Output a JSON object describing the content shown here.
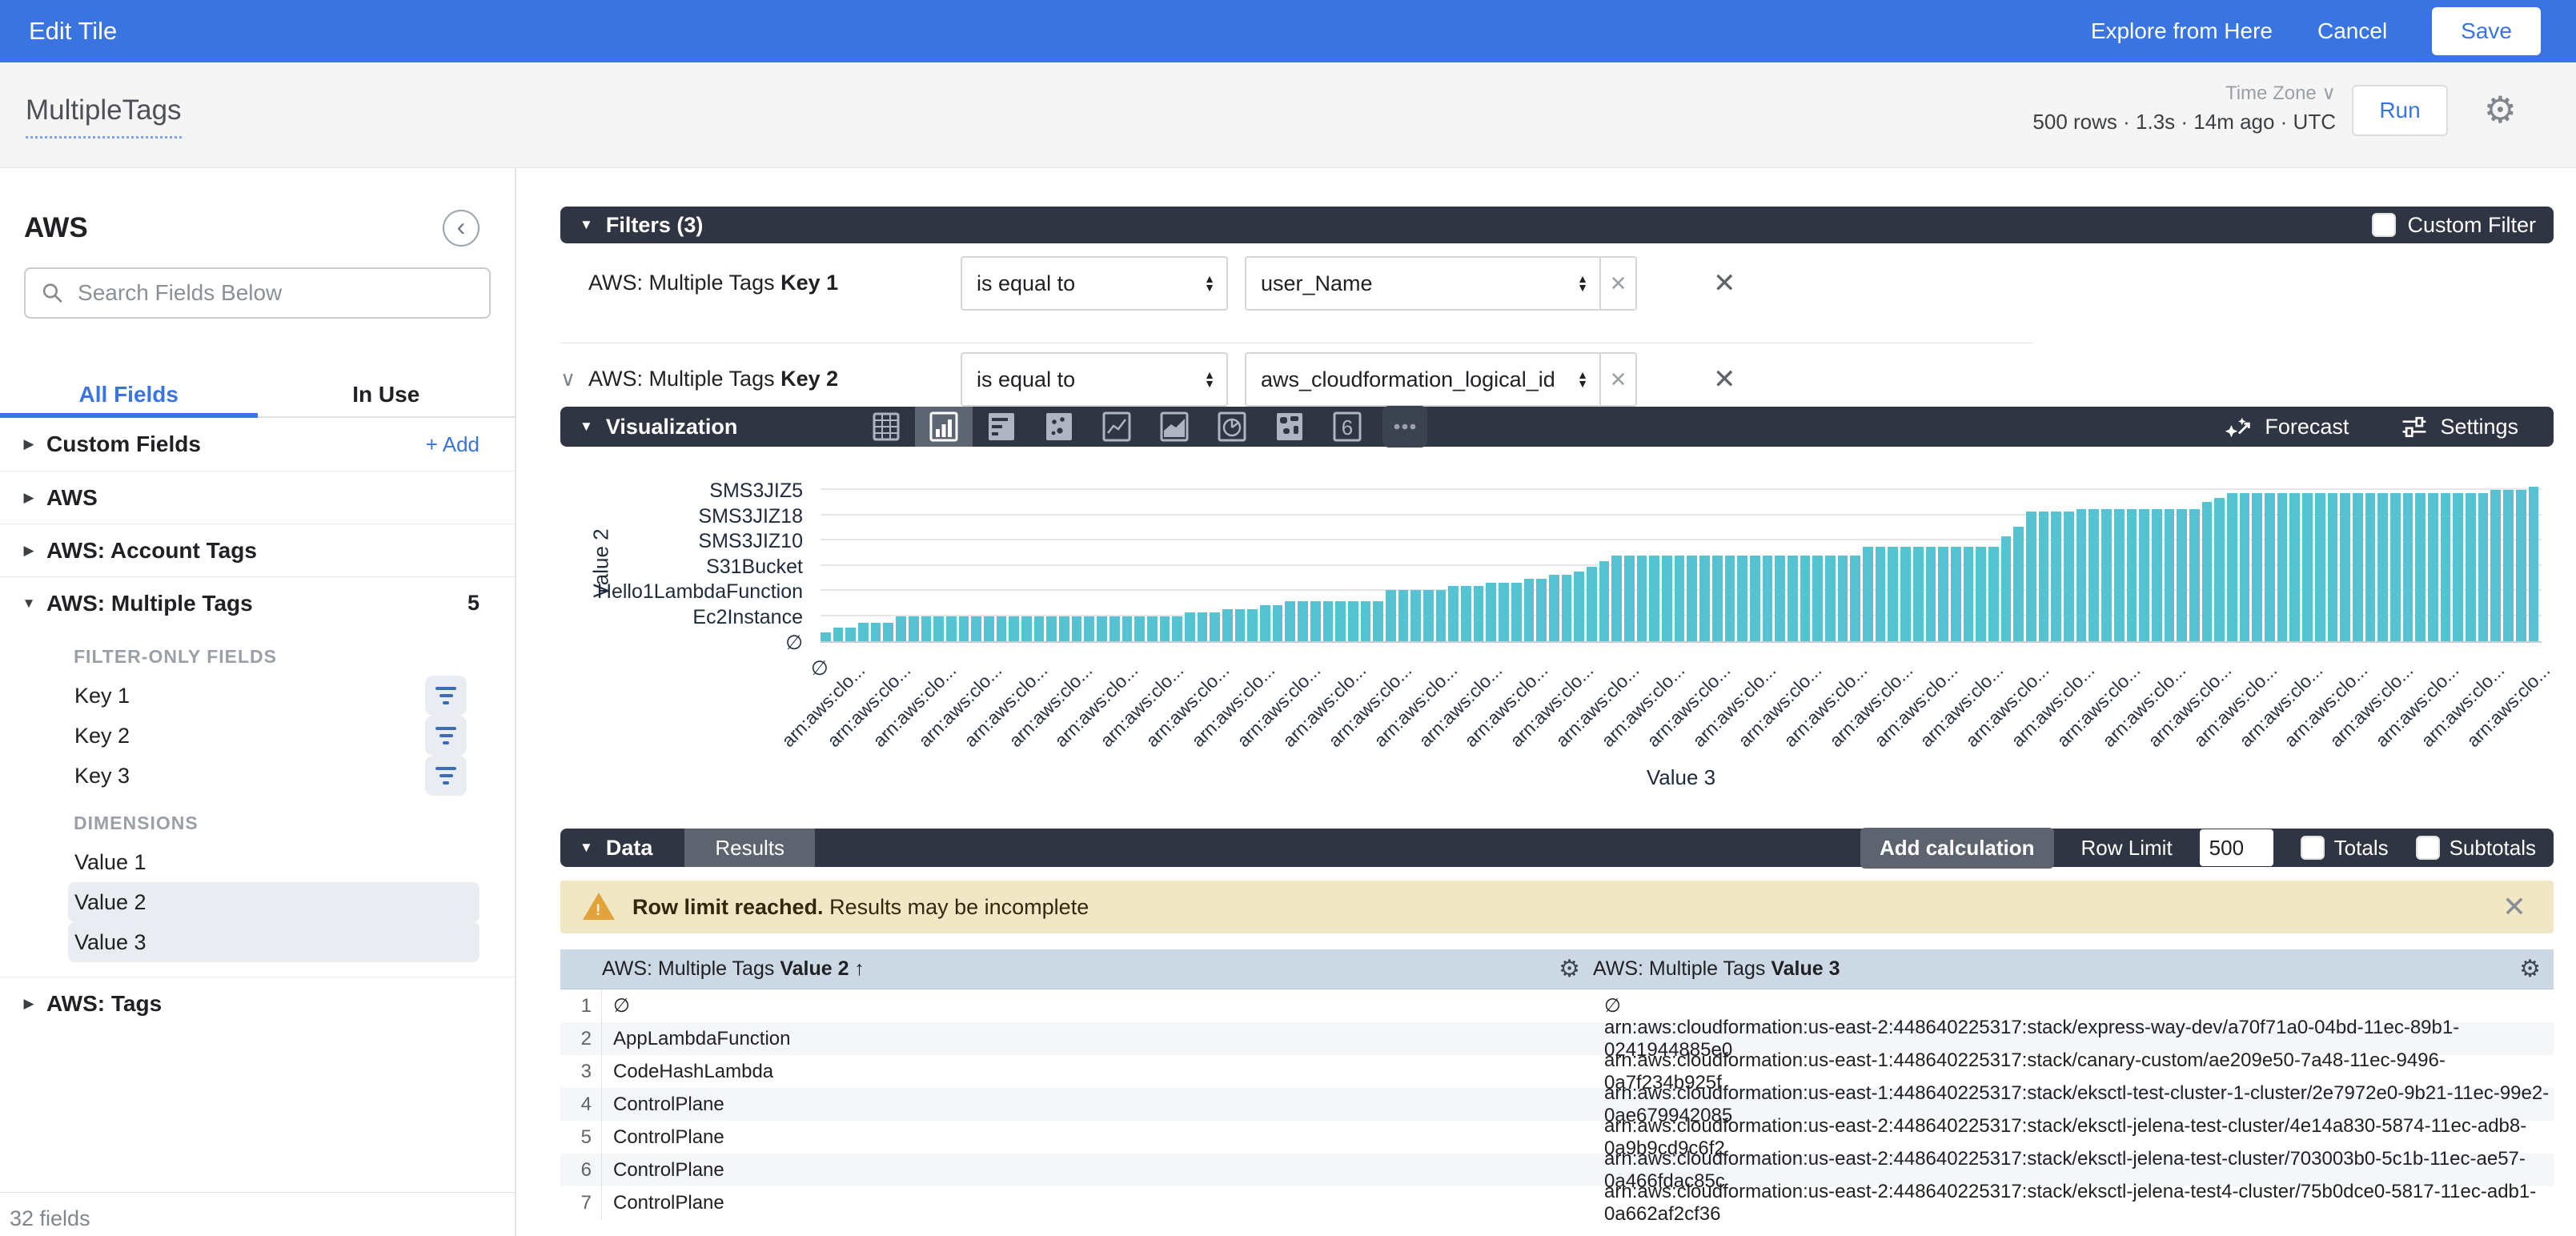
{
  "topbar": {
    "title": "Edit Tile",
    "explore": "Explore from Here",
    "cancel": "Cancel",
    "save": "Save"
  },
  "queryHeader": {
    "title": "MultipleTags",
    "status": "500 rows · 1.3s · 14m ago · UTC",
    "timezoneLabel": "Time Zone ∨",
    "run": "Run"
  },
  "sidebar": {
    "model": "AWS",
    "searchPlaceholder": "Search Fields Below",
    "tabs": {
      "all": "All Fields",
      "inUse": "In Use"
    },
    "groups": [
      {
        "label": "Custom Fields",
        "caret": "right",
        "action": "+ Add"
      },
      {
        "label": "AWS",
        "caret": "right"
      },
      {
        "label": "AWS: Account Tags",
        "caret": "right"
      },
      {
        "label": "AWS: Multiple Tags",
        "caret": "down",
        "count": "5",
        "expanded": true,
        "sections": [
          {
            "heading": "FILTER-ONLY FIELDS",
            "items": [
              {
                "label": "Key 1",
                "filter": true
              },
              {
                "label": "Key 2",
                "filter": true
              },
              {
                "label": "Key 3",
                "filter": true
              }
            ]
          },
          {
            "heading": "DIMENSIONS",
            "items": [
              {
                "label": "Value 1"
              },
              {
                "label": "Value 2",
                "selected": true
              },
              {
                "label": "Value 3",
                "selected": true
              }
            ]
          }
        ]
      },
      {
        "label": "AWS: Tags",
        "caret": "right"
      }
    ],
    "footer": "32 fields"
  },
  "filters": {
    "title": "Filters (3)",
    "customFilterLabel": "Custom Filter",
    "rows": [
      {
        "labelPrefix": "AWS: Multiple Tags ",
        "labelBold": "Key 1",
        "op": "is equal to",
        "value": "user_Name",
        "chevron": false
      },
      {
        "labelPrefix": "AWS: Multiple Tags ",
        "labelBold": "Key 2",
        "op": "is equal to",
        "value": "aws_cloudformation_logical_id",
        "chevron": true
      }
    ]
  },
  "visualization": {
    "title": "Visualization",
    "icons": [
      "table",
      "column",
      "bar",
      "scatter",
      "line",
      "area",
      "pie",
      "map",
      "single-value",
      "more"
    ],
    "selected": "column",
    "forecast": "Forecast",
    "settings": "Settings"
  },
  "chart_data": {
    "type": "bar",
    "orientation": "vertical-bars-categorical-y",
    "ylabel": "Value 2",
    "xlabel": "Value 3",
    "y_categories_bottom_up": [
      "∅",
      "Ec2Instance",
      "Hello1LambdaFunction",
      "S31Bucket",
      "SMS3JIZ10",
      "SMS3JIZ18",
      "SMS3JIZ5"
    ],
    "ylim": [
      0,
      6.45
    ],
    "grid": true,
    "bar_color": "#56c3d2",
    "x_first_tick": "∅",
    "x_tick_text": "arn:aws:clo...",
    "x_tick_count": 38,
    "steps": [
      {
        "v": 0.35,
        "n": 1
      },
      {
        "v": 0.55,
        "n": 2
      },
      {
        "v": 0.75,
        "n": 3
      },
      {
        "v": 1.0,
        "n": 23
      },
      {
        "v": 1.15,
        "n": 3
      },
      {
        "v": 1.3,
        "n": 3
      },
      {
        "v": 1.45,
        "n": 2
      },
      {
        "v": 1.6,
        "n": 8
      },
      {
        "v": 2.05,
        "n": 5
      },
      {
        "v": 2.2,
        "n": 3
      },
      {
        "v": 2.35,
        "n": 3
      },
      {
        "v": 2.5,
        "n": 2
      },
      {
        "v": 2.65,
        "n": 2
      },
      {
        "v": 2.8,
        "n": 1
      },
      {
        "v": 3.0,
        "n": 1
      },
      {
        "v": 3.2,
        "n": 1
      },
      {
        "v": 3.45,
        "n": 20
      },
      {
        "v": 3.8,
        "n": 11
      },
      {
        "v": 4.2,
        "n": 1
      },
      {
        "v": 4.6,
        "n": 1
      },
      {
        "v": 5.2,
        "n": 4
      },
      {
        "v": 5.3,
        "n": 10
      },
      {
        "v": 5.6,
        "n": 1
      },
      {
        "v": 5.75,
        "n": 1
      },
      {
        "v": 5.95,
        "n": 21
      },
      {
        "v": 6.05,
        "n": 3
      },
      {
        "v": 6.2,
        "n": 1
      }
    ]
  },
  "dataSection": {
    "title": "Data",
    "tab": "Results",
    "addCalculation": "Add calculation",
    "rowLimitLabel": "Row Limit",
    "rowLimitValue": "500",
    "totals": "Totals",
    "subtotals": "Subtotals",
    "warningBold": "Row limit reached.",
    "warningRest": " Results may be incomplete"
  },
  "table": {
    "headers": [
      {
        "prefix": "AWS: Multiple Tags ",
        "bold": "Value 2",
        "suffix": " ↑"
      },
      {
        "prefix": "AWS: Multiple Tags ",
        "bold": "Value 3",
        "suffix": ""
      }
    ],
    "rows": [
      [
        "∅",
        "∅"
      ],
      [
        "AppLambdaFunction",
        "arn:aws:cloudformation:us-east-2:448640225317:stack/express-way-dev/a70f71a0-04bd-11ec-89b1-0241944885e0"
      ],
      [
        "CodeHashLambda",
        "arn:aws:cloudformation:us-east-1:448640225317:stack/canary-custom/ae209e50-7a48-11ec-9496-0a7f234b925f"
      ],
      [
        "ControlPlane",
        "arn:aws:cloudformation:us-east-1:448640225317:stack/eksctl-test-cluster-1-cluster/2e7972e0-9b21-11ec-99e2-0ae679942085"
      ],
      [
        "ControlPlane",
        "arn:aws:cloudformation:us-east-2:448640225317:stack/eksctl-jelena-test-cluster/4e14a830-5874-11ec-adb8-0a9b9cd9c6f2"
      ],
      [
        "ControlPlane",
        "arn:aws:cloudformation:us-east-2:448640225317:stack/eksctl-jelena-test-cluster/703003b0-5c1b-11ec-ae57-0a466fdac85c"
      ],
      [
        "ControlPlane",
        "arn:aws:cloudformation:us-east-2:448640225317:stack/eksctl-jelena-test4-cluster/75b0dce0-5817-11ec-adb1-0a662af2cf36"
      ]
    ]
  }
}
